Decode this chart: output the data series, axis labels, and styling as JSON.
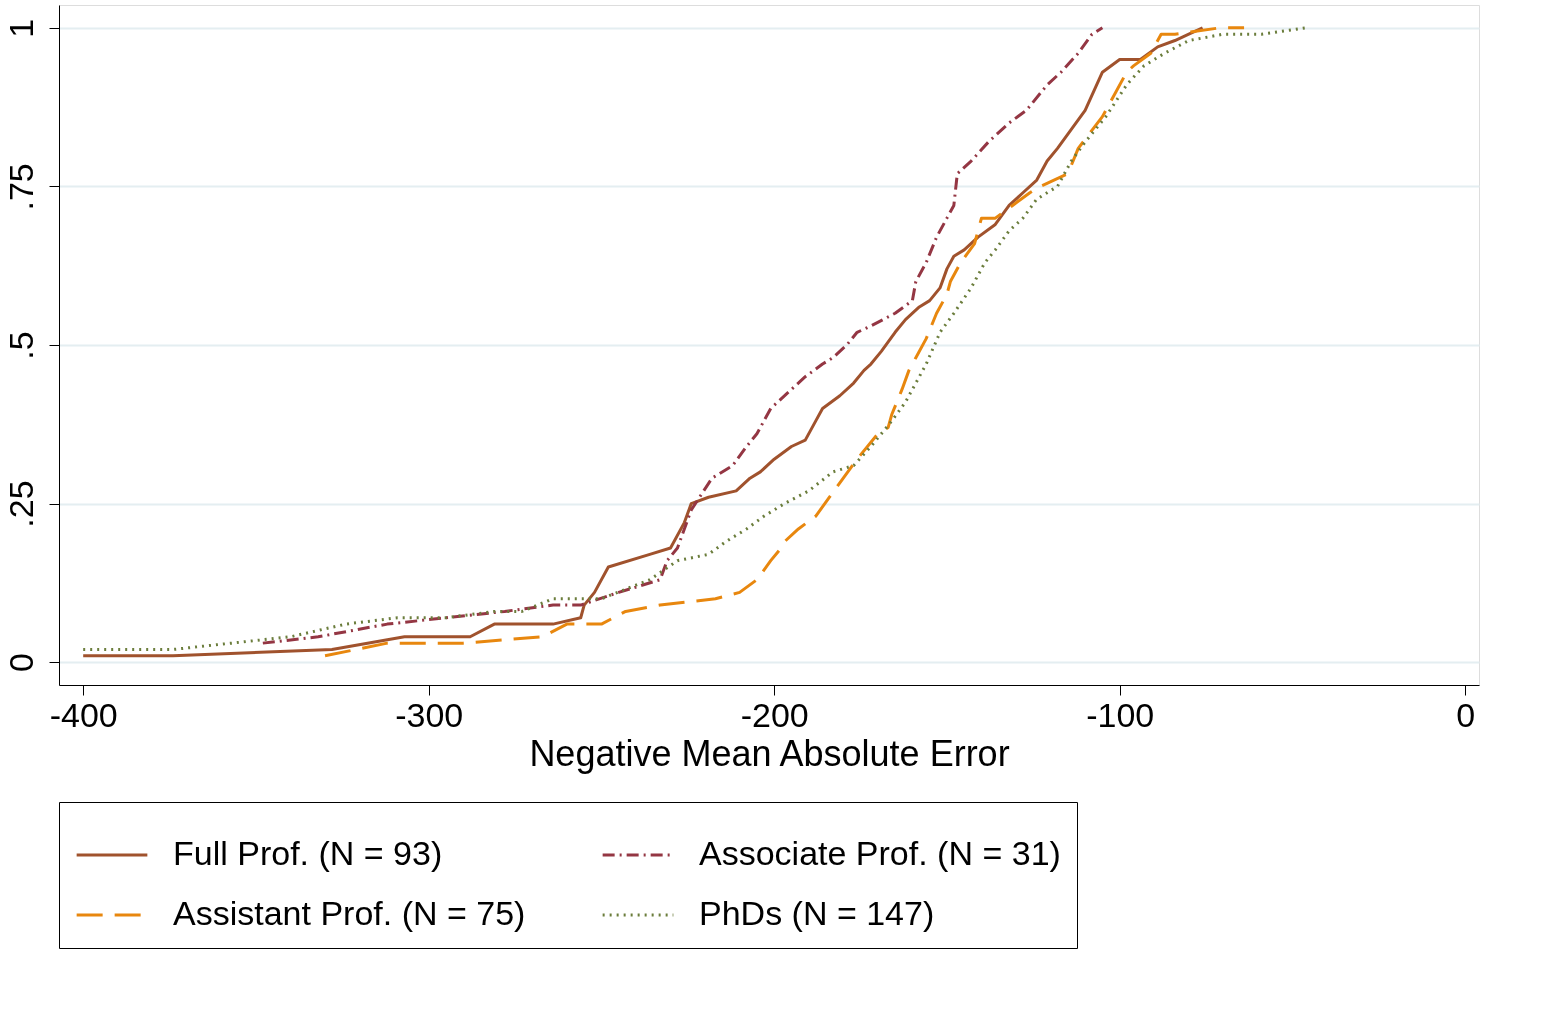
{
  "chart_data": {
    "type": "line",
    "xlabel": "Negative Mean Absolute Error",
    "xlim": [
      -407,
      4
    ],
    "xticks": [
      -400,
      -300,
      -200,
      -100,
      0
    ],
    "ylim": [
      -0.036,
      1.036
    ],
    "yticks": [
      {
        "value": 0,
        "label": "0"
      },
      {
        "value": 0.25,
        "label": ".25"
      },
      {
        "value": 0.5,
        "label": ".5"
      },
      {
        "value": 0.75,
        "label": ".75"
      },
      {
        "value": 1,
        "label": "1"
      }
    ],
    "grid": "y",
    "legend": "bottom",
    "series": [
      {
        "name": "Full Prof. (N = 93)",
        "color": "#a0522d",
        "line_style": "solid",
        "x": [
          -400,
          -374,
          -328,
          -307,
          -288,
          -281,
          -264,
          -256,
          -255,
          -252,
          -248,
          -236,
          -230,
          -226,
          -224,
          -219,
          -211,
          -207,
          -204,
          -200,
          -195,
          -191,
          -188,
          -186,
          -181,
          -177,
          -174,
          -172,
          -169,
          -165,
          -162,
          -158,
          -155,
          -152,
          -150,
          -148,
          -145,
          -141,
          -136,
          -132,
          -128,
          -124,
          -121,
          -118,
          -114,
          -110,
          -105,
          -100,
          -94,
          -89,
          -84,
          -80,
          -76
        ],
        "values": [
          0.01,
          0.01,
          0.02,
          0.04,
          0.04,
          0.06,
          0.06,
          0.07,
          0.09,
          0.11,
          0.15,
          0.17,
          0.18,
          0.22,
          0.25,
          0.26,
          0.27,
          0.29,
          0.3,
          0.32,
          0.34,
          0.35,
          0.38,
          0.4,
          0.42,
          0.44,
          0.46,
          0.47,
          0.49,
          0.52,
          0.54,
          0.56,
          0.57,
          0.59,
          0.62,
          0.64,
          0.65,
          0.67,
          0.69,
          0.72,
          0.74,
          0.76,
          0.79,
          0.81,
          0.84,
          0.87,
          0.93,
          0.95,
          0.95,
          0.97,
          0.98,
          0.99,
          1.0
        ]
      },
      {
        "name": "Associate Prof. (N = 31)",
        "color": "#943643",
        "line_style": "dashdot",
        "x": [
          -348,
          -332,
          -312,
          -295,
          -278,
          -264,
          -256,
          -245,
          -233,
          -231,
          -228,
          -226,
          -224,
          -218,
          -212,
          -208,
          -205,
          -201,
          -195,
          -191,
          -186,
          -183,
          -179,
          -176,
          -172,
          -165,
          -160,
          -159,
          -156,
          -153,
          -150,
          -148,
          -147,
          -143,
          -138,
          -132,
          -127,
          -121,
          -117,
          -112,
          -108,
          -105
        ],
        "values": [
          0.03,
          0.04,
          0.06,
          0.07,
          0.08,
          0.09,
          0.09,
          0.11,
          0.13,
          0.16,
          0.18,
          0.21,
          0.24,
          0.29,
          0.31,
          0.34,
          0.36,
          0.4,
          0.43,
          0.45,
          0.47,
          0.48,
          0.5,
          0.52,
          0.53,
          0.55,
          0.57,
          0.6,
          0.63,
          0.67,
          0.7,
          0.72,
          0.77,
          0.79,
          0.82,
          0.85,
          0.87,
          0.91,
          0.93,
          0.96,
          0.99,
          1.0
        ]
      },
      {
        "name": "Assistant Prof. (N = 75)",
        "color": "#e8870e",
        "line_style": "dashed",
        "x": [
          -330,
          -312,
          -290,
          -267,
          -260,
          -250,
          -243,
          -233,
          -217,
          -210,
          -205,
          -201,
          -198,
          -197,
          -193,
          -188,
          -184,
          -180,
          -176,
          -170,
          -167,
          -166,
          -163,
          -161,
          -159,
          -156,
          -153,
          -150,
          -149,
          -146,
          -142,
          -140,
          -136,
          -131,
          -126,
          -123,
          -115,
          -112,
          -105,
          -103,
          -98,
          -96,
          -91,
          -88,
          -84,
          -71,
          -64
        ],
        "values": [
          0.01,
          0.03,
          0.03,
          0.04,
          0.06,
          0.06,
          0.08,
          0.09,
          0.1,
          0.11,
          0.13,
          0.16,
          0.18,
          0.19,
          0.21,
          0.23,
          0.26,
          0.29,
          0.32,
          0.36,
          0.37,
          0.39,
          0.43,
          0.46,
          0.48,
          0.51,
          0.55,
          0.58,
          0.6,
          0.63,
          0.66,
          0.7,
          0.7,
          0.72,
          0.74,
          0.75,
          0.77,
          0.81,
          0.86,
          0.88,
          0.93,
          0.94,
          0.96,
          0.99,
          0.99,
          1.0,
          1.0
        ]
      },
      {
        "name": "PhDs (N = 147)",
        "color": "#6b7d3c",
        "line_style": "dotted",
        "x": [
          -400,
          -374,
          -357,
          -340,
          -324,
          -309,
          -295,
          -281,
          -273,
          -264,
          -250,
          -236,
          -228,
          -219,
          -214,
          -208,
          -203,
          -197,
          -190,
          -183,
          -177,
          -172,
          -166,
          -162,
          -159,
          -156,
          -152,
          -148,
          -143,
          -139,
          -136,
          -132,
          -128,
          -124,
          -118,
          -114,
          -110,
          -104,
          -98,
          -93,
          -87,
          -80,
          -70,
          -59,
          -46
        ],
        "values": [
          0.02,
          0.02,
          0.03,
          0.04,
          0.06,
          0.07,
          0.07,
          0.08,
          0.08,
          0.1,
          0.1,
          0.13,
          0.16,
          0.17,
          0.19,
          0.21,
          0.23,
          0.25,
          0.27,
          0.3,
          0.31,
          0.34,
          0.38,
          0.41,
          0.44,
          0.47,
          0.52,
          0.55,
          0.59,
          0.63,
          0.65,
          0.68,
          0.7,
          0.73,
          0.75,
          0.79,
          0.82,
          0.86,
          0.91,
          0.94,
          0.96,
          0.98,
          0.99,
          0.99,
          1.0
        ]
      }
    ]
  }
}
